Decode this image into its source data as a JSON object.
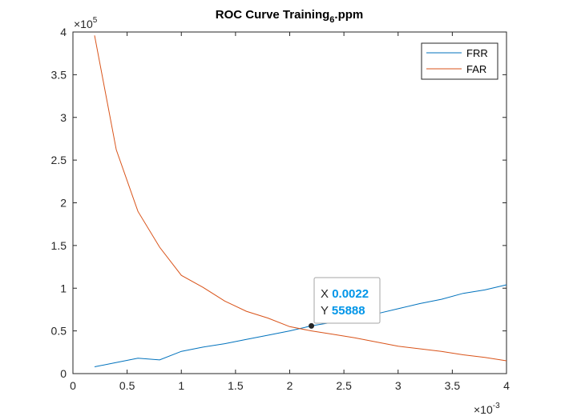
{
  "chart_data": {
    "type": "line",
    "title": {
      "main": "ROC Curve Training",
      "subscript": "6",
      "suffix": ".ppm"
    },
    "xlabel": "",
    "ylabel": "",
    "xlim": [
      0,
      0.004
    ],
    "ylim": [
      0,
      400000
    ],
    "x_ticks": [
      0,
      0.0005,
      0.001,
      0.0015,
      0.002,
      0.0025,
      0.003,
      0.0035,
      0.004
    ],
    "x_tick_labels": [
      "0",
      "0.5",
      "1",
      "1.5",
      "2",
      "2.5",
      "3",
      "3.5",
      "4"
    ],
    "x_exponent": {
      "base": "×10",
      "power": "-3"
    },
    "y_ticks": [
      0,
      50000,
      100000,
      150000,
      200000,
      250000,
      300000,
      350000,
      400000
    ],
    "y_tick_labels": [
      "0",
      "0.5",
      "1",
      "1.5",
      "2",
      "2.5",
      "3",
      "3.5",
      "4"
    ],
    "y_exponent": {
      "base": "×10",
      "power": "5"
    },
    "grid": false,
    "legend_position": "top-right",
    "series": [
      {
        "name": "FRR",
        "color": "#0072BD",
        "x": [
          0.0002,
          0.0004,
          0.0006,
          0.0008,
          0.001,
          0.0012,
          0.0014,
          0.0016,
          0.0018,
          0.002,
          0.0022,
          0.0024,
          0.0026,
          0.0028,
          0.003,
          0.0032,
          0.0034,
          0.0036,
          0.0038,
          0.004
        ],
        "y": [
          8000,
          13000,
          18000,
          16000,
          26000,
          31000,
          35000,
          40000,
          45000,
          50000,
          55888,
          60000,
          65000,
          70000,
          76000,
          82000,
          87000,
          94000,
          98000,
          104000
        ]
      },
      {
        "name": "FAR",
        "color": "#D95319",
        "x": [
          0.0002,
          0.0004,
          0.0006,
          0.0008,
          0.001,
          0.0012,
          0.0014,
          0.0016,
          0.0018,
          0.002,
          0.0022,
          0.0024,
          0.0026,
          0.0028,
          0.003,
          0.0032,
          0.0034,
          0.0036,
          0.0038,
          0.004
        ],
        "y": [
          396000,
          262000,
          190000,
          148000,
          115000,
          101000,
          85000,
          73000,
          65000,
          55000,
          50000,
          46000,
          42000,
          37000,
          32000,
          29000,
          26000,
          22000,
          19000,
          15000
        ]
      }
    ],
    "datatip": {
      "x": 0.0022,
      "y": 55888,
      "x_label": "X",
      "x_value": "0.0022",
      "y_label": "Y",
      "y_value": "55888",
      "value_color": "#0095E8"
    }
  }
}
